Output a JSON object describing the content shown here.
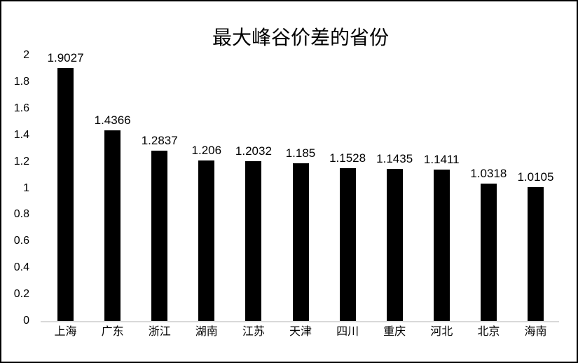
{
  "chart_data": {
    "type": "bar",
    "title": "最大峰谷价差的省份",
    "categories": [
      "上海",
      "广东",
      "浙江",
      "湖南",
      "江苏",
      "天津",
      "四川",
      "重庆",
      "河北",
      "北京",
      "海南"
    ],
    "values": [
      1.9027,
      1.4366,
      1.2837,
      1.206,
      1.2032,
      1.185,
      1.1528,
      1.1435,
      1.1411,
      1.0318,
      1.0105
    ],
    "data_labels": [
      "1.9027",
      "1.4366",
      "1.2837",
      "1.206",
      "1.2032",
      "1.185",
      "1.1528",
      "1.1435",
      "1.1411",
      "1.0318",
      "1.0105"
    ],
    "yticks": [
      0,
      0.2,
      0.4,
      0.6,
      0.8,
      1,
      1.2,
      1.4,
      1.6,
      1.8,
      2
    ],
    "ytick_labels": [
      "0",
      "0.2",
      "0.4",
      "0.6",
      "0.8",
      "1",
      "1.2",
      "1.4",
      "1.6",
      "1.8",
      "2"
    ],
    "ylim": [
      0,
      2
    ],
    "xlabel": "",
    "ylabel": "",
    "grid": false,
    "legend": "none",
    "bar_color": "#000000",
    "axis_line_color": "#d9d9d9",
    "text_color": "#000000",
    "background_color": "#ffffff",
    "frame_border_color": "#000000"
  }
}
